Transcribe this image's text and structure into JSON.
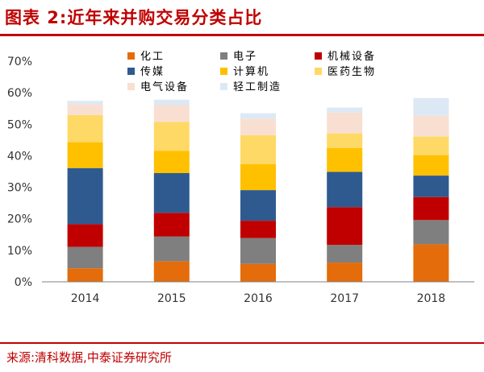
{
  "title": "图表 2:近年来并购交易分类占比",
  "source": "来源:清科数据,中泰证券研究所",
  "chart_data": {
    "type": "bar",
    "stacked": true,
    "categories": [
      "2014",
      "2015",
      "2016",
      "2017",
      "2018"
    ],
    "ylim": [
      0,
      70
    ],
    "ytick_labels": [
      "0%",
      "10%",
      "20%",
      "30%",
      "40%",
      "50%",
      "60%",
      "70%"
    ],
    "grid": false,
    "legend_position": "top",
    "series": [
      {
        "name": "化工",
        "color": "#e46c0a",
        "values": [
          4.3,
          6.5,
          5.7,
          6.1,
          11.9
        ]
      },
      {
        "name": "电子",
        "color": "#7f7f7f",
        "values": [
          6.8,
          7.9,
          8.2,
          5.6,
          7.7
        ]
      },
      {
        "name": "机械设备",
        "color": "#c00000",
        "values": [
          7.2,
          7.5,
          5.5,
          12.0,
          7.3
        ]
      },
      {
        "name": "传媒",
        "color": "#2e5a8f",
        "values": [
          17.8,
          12.6,
          9.7,
          11.2,
          6.8
        ]
      },
      {
        "name": "计算机",
        "color": "#ffc000",
        "values": [
          8.2,
          7.1,
          8.2,
          7.5,
          6.5
        ]
      },
      {
        "name": "医药生物",
        "color": "#ffd966",
        "values": [
          8.6,
          9.1,
          9.2,
          4.7,
          5.9
        ]
      },
      {
        "name": "电气设备",
        "color": "#f8dfd2",
        "values": [
          3.5,
          5.4,
          5.3,
          6.6,
          6.6
        ]
      },
      {
        "name": "轻工制造",
        "color": "#dce9f5",
        "values": [
          1.0,
          1.7,
          1.7,
          1.6,
          5.6
        ]
      }
    ]
  }
}
